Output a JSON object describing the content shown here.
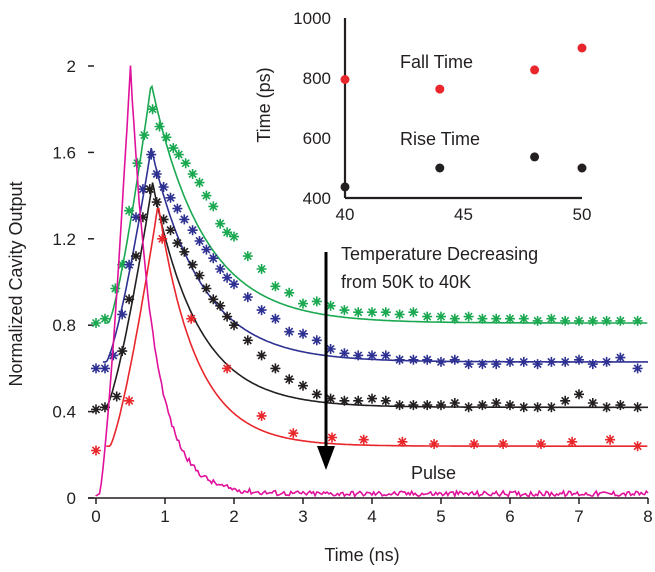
{
  "chart_data": [
    {
      "type": "line",
      "title": "",
      "xlabel": "Time (ns)",
      "ylabel": "Normalized Cavity Output",
      "xlim": [
        0,
        8
      ],
      "ylim": [
        0,
        2
      ],
      "x_ticks": [
        "0",
        "1",
        "2",
        "3",
        "4",
        "5",
        "6",
        "7",
        "8"
      ],
      "y_ticks": [
        "0",
        "0.4",
        "0.8",
        "1.2",
        "1.6",
        "2"
      ],
      "annotations": {
        "arrow_text_line1": "Temperature Decreasing",
        "arrow_text_line2": "from 50K to 40K",
        "pulse_label": "Pulse"
      },
      "colors": {
        "green": "#1aa851",
        "blue": "#2e3192",
        "black": "#231f20",
        "red": "#e8262b",
        "pulse": "#e0119b"
      },
      "series": [
        {
          "color": "green",
          "fit": {
            "baseline": 0.81,
            "peak": 1.92,
            "t_peak": 0.8,
            "t_start": 0.18,
            "tau": 0.75
          },
          "points": [
            [
              0,
              0.81
            ],
            [
              0.13,
              0.83
            ],
            [
              0.28,
              0.97
            ],
            [
              0.38,
              1.08
            ],
            [
              0.48,
              1.33
            ],
            [
              0.6,
              1.55
            ],
            [
              0.7,
              1.68
            ],
            [
              0.82,
              1.8
            ],
            [
              0.92,
              1.72
            ],
            [
              1.02,
              1.67
            ],
            [
              1.12,
              1.62
            ],
            [
              1.2,
              1.59
            ],
            [
              1.3,
              1.55
            ],
            [
              1.4,
              1.5
            ],
            [
              1.5,
              1.46
            ],
            [
              1.6,
              1.4
            ],
            [
              1.7,
              1.35
            ],
            [
              1.8,
              1.27
            ],
            [
              1.9,
              1.23
            ],
            [
              2.0,
              1.21
            ],
            [
              2.2,
              1.12
            ],
            [
              2.4,
              1.06
            ],
            [
              2.6,
              0.98
            ],
            [
              2.8,
              0.95
            ],
            [
              3.0,
              0.9
            ],
            [
              3.2,
              0.91
            ],
            [
              3.4,
              0.89
            ],
            [
              3.6,
              0.87
            ],
            [
              3.8,
              0.86
            ],
            [
              4.0,
              0.86
            ],
            [
              4.2,
              0.86
            ],
            [
              4.4,
              0.85
            ],
            [
              4.6,
              0.86
            ],
            [
              4.8,
              0.84
            ],
            [
              5.0,
              0.84
            ],
            [
              5.2,
              0.83
            ],
            [
              5.4,
              0.84
            ],
            [
              5.6,
              0.83
            ],
            [
              5.8,
              0.83
            ],
            [
              6.0,
              0.83
            ],
            [
              6.2,
              0.83
            ],
            [
              6.4,
              0.82
            ],
            [
              6.6,
              0.83
            ],
            [
              6.8,
              0.82
            ],
            [
              7.0,
              0.82
            ],
            [
              7.2,
              0.82
            ],
            [
              7.4,
              0.82
            ],
            [
              7.6,
              0.82
            ],
            [
              7.85,
              0.82
            ]
          ]
        },
        {
          "color": "blue",
          "fit": {
            "baseline": 0.63,
            "peak": 1.62,
            "t_peak": 0.8,
            "t_start": 0.15,
            "tau": 0.72
          },
          "points": [
            [
              0,
              0.6
            ],
            [
              0.13,
              0.6
            ],
            [
              0.25,
              0.66
            ],
            [
              0.38,
              0.85
            ],
            [
              0.48,
              1.08
            ],
            [
              0.58,
              1.3
            ],
            [
              0.68,
              1.43
            ],
            [
              0.8,
              1.59
            ],
            [
              0.88,
              1.5
            ],
            [
              0.98,
              1.44
            ],
            [
              1.08,
              1.39
            ],
            [
              1.18,
              1.34
            ],
            [
              1.28,
              1.29
            ],
            [
              1.4,
              1.24
            ],
            [
              1.5,
              1.19
            ],
            [
              1.6,
              1.15
            ],
            [
              1.7,
              1.11
            ],
            [
              1.8,
              1.06
            ],
            [
              1.9,
              1.02
            ],
            [
              2.0,
              0.99
            ],
            [
              2.2,
              0.93
            ],
            [
              2.4,
              0.87
            ],
            [
              2.6,
              0.83
            ],
            [
              2.8,
              0.77
            ],
            [
              3.0,
              0.76
            ],
            [
              3.2,
              0.73
            ],
            [
              3.4,
              0.69
            ],
            [
              3.6,
              0.67
            ],
            [
              3.8,
              0.66
            ],
            [
              4.0,
              0.66
            ],
            [
              4.2,
              0.66
            ],
            [
              4.4,
              0.64
            ],
            [
              4.6,
              0.64
            ],
            [
              4.8,
              0.64
            ],
            [
              5.0,
              0.63
            ],
            [
              5.2,
              0.64
            ],
            [
              5.4,
              0.62
            ],
            [
              5.6,
              0.62
            ],
            [
              5.8,
              0.62
            ],
            [
              6.0,
              0.63
            ],
            [
              6.2,
              0.63
            ],
            [
              6.4,
              0.62
            ],
            [
              6.6,
              0.63
            ],
            [
              6.8,
              0.63
            ],
            [
              7.0,
              0.64
            ],
            [
              7.2,
              0.62
            ],
            [
              7.4,
              0.63
            ],
            [
              7.6,
              0.65
            ],
            [
              7.85,
              0.6
            ]
          ]
        },
        {
          "color": "black",
          "fit": {
            "baseline": 0.42,
            "peak": 1.46,
            "t_peak": 0.82,
            "t_start": 0.15,
            "tau": 0.65
          },
          "points": [
            [
              0,
              0.41
            ],
            [
              0.13,
              0.42
            ],
            [
              0.3,
              0.47
            ],
            [
              0.38,
              0.68
            ],
            [
              0.48,
              0.92
            ],
            [
              0.58,
              1.12
            ],
            [
              0.68,
              1.3
            ],
            [
              0.78,
              1.43
            ],
            [
              0.88,
              1.37
            ],
            [
              0.98,
              1.29
            ],
            [
              1.08,
              1.24
            ],
            [
              1.18,
              1.18
            ],
            [
              1.28,
              1.14
            ],
            [
              1.4,
              1.08
            ],
            [
              1.5,
              1.03
            ],
            [
              1.6,
              0.97
            ],
            [
              1.7,
              0.92
            ],
            [
              1.8,
              0.89
            ],
            [
              1.9,
              0.84
            ],
            [
              2.0,
              0.8
            ],
            [
              2.2,
              0.73
            ],
            [
              2.4,
              0.66
            ],
            [
              2.6,
              0.6
            ],
            [
              2.8,
              0.55
            ],
            [
              3.0,
              0.52
            ],
            [
              3.2,
              0.48
            ],
            [
              3.4,
              0.46
            ],
            [
              3.6,
              0.45
            ],
            [
              3.8,
              0.45
            ],
            [
              4.0,
              0.46
            ],
            [
              4.2,
              0.45
            ],
            [
              4.4,
              0.43
            ],
            [
              4.6,
              0.43
            ],
            [
              4.8,
              0.43
            ],
            [
              5.0,
              0.43
            ],
            [
              5.2,
              0.44
            ],
            [
              5.4,
              0.42
            ],
            [
              5.6,
              0.43
            ],
            [
              5.8,
              0.44
            ],
            [
              6.0,
              0.43
            ],
            [
              6.2,
              0.42
            ],
            [
              6.4,
              0.42
            ],
            [
              6.6,
              0.42
            ],
            [
              6.8,
              0.45
            ],
            [
              7.0,
              0.48
            ],
            [
              7.2,
              0.44
            ],
            [
              7.4,
              0.42
            ],
            [
              7.6,
              0.43
            ],
            [
              7.85,
              0.42
            ]
          ]
        },
        {
          "color": "red",
          "fit": {
            "baseline": 0.24,
            "peak": 1.36,
            "t_peak": 0.9,
            "t_start": 0.2,
            "tau": 0.55
          },
          "points": [
            [
              0,
              0.22
            ],
            [
              0.48,
              0.45
            ],
            [
              0.96,
              1.2
            ],
            [
              1.38,
              0.83
            ],
            [
              1.9,
              0.6
            ],
            [
              2.4,
              0.38
            ],
            [
              2.86,
              0.3
            ],
            [
              3.42,
              0.28
            ],
            [
              3.88,
              0.27
            ],
            [
              4.44,
              0.26
            ],
            [
              4.9,
              0.25
            ],
            [
              5.48,
              0.25
            ],
            [
              5.9,
              0.25
            ],
            [
              6.45,
              0.25
            ],
            [
              6.9,
              0.26
            ],
            [
              7.45,
              0.27
            ],
            [
              7.85,
              0.24
            ]
          ]
        },
        {
          "color": "pulse",
          "fit": {
            "baseline": 0.02,
            "peak": 2.0,
            "t_peak": 0.5,
            "t_start": 0.05,
            "tau": 0.33
          }
        }
      ]
    },
    {
      "type": "scatter",
      "title": "",
      "xlabel": "",
      "ylabel": "Time (ps)",
      "xlim": [
        40,
        50
      ],
      "ylim": [
        400,
        1000
      ],
      "x_ticks": [
        "40",
        "45",
        "50"
      ],
      "y_ticks": [
        "400",
        "600",
        "800",
        "1000"
      ],
      "series": [
        {
          "name": "Fall Time",
          "color": "#e8262b",
          "x": [
            40,
            44,
            48,
            50
          ],
          "y": [
            795,
            763,
            827,
            900
          ]
        },
        {
          "name": "Rise Time",
          "color": "#231f20",
          "x": [
            40,
            44,
            48,
            50
          ],
          "y": [
            437,
            500,
            537,
            500
          ]
        }
      ]
    }
  ]
}
